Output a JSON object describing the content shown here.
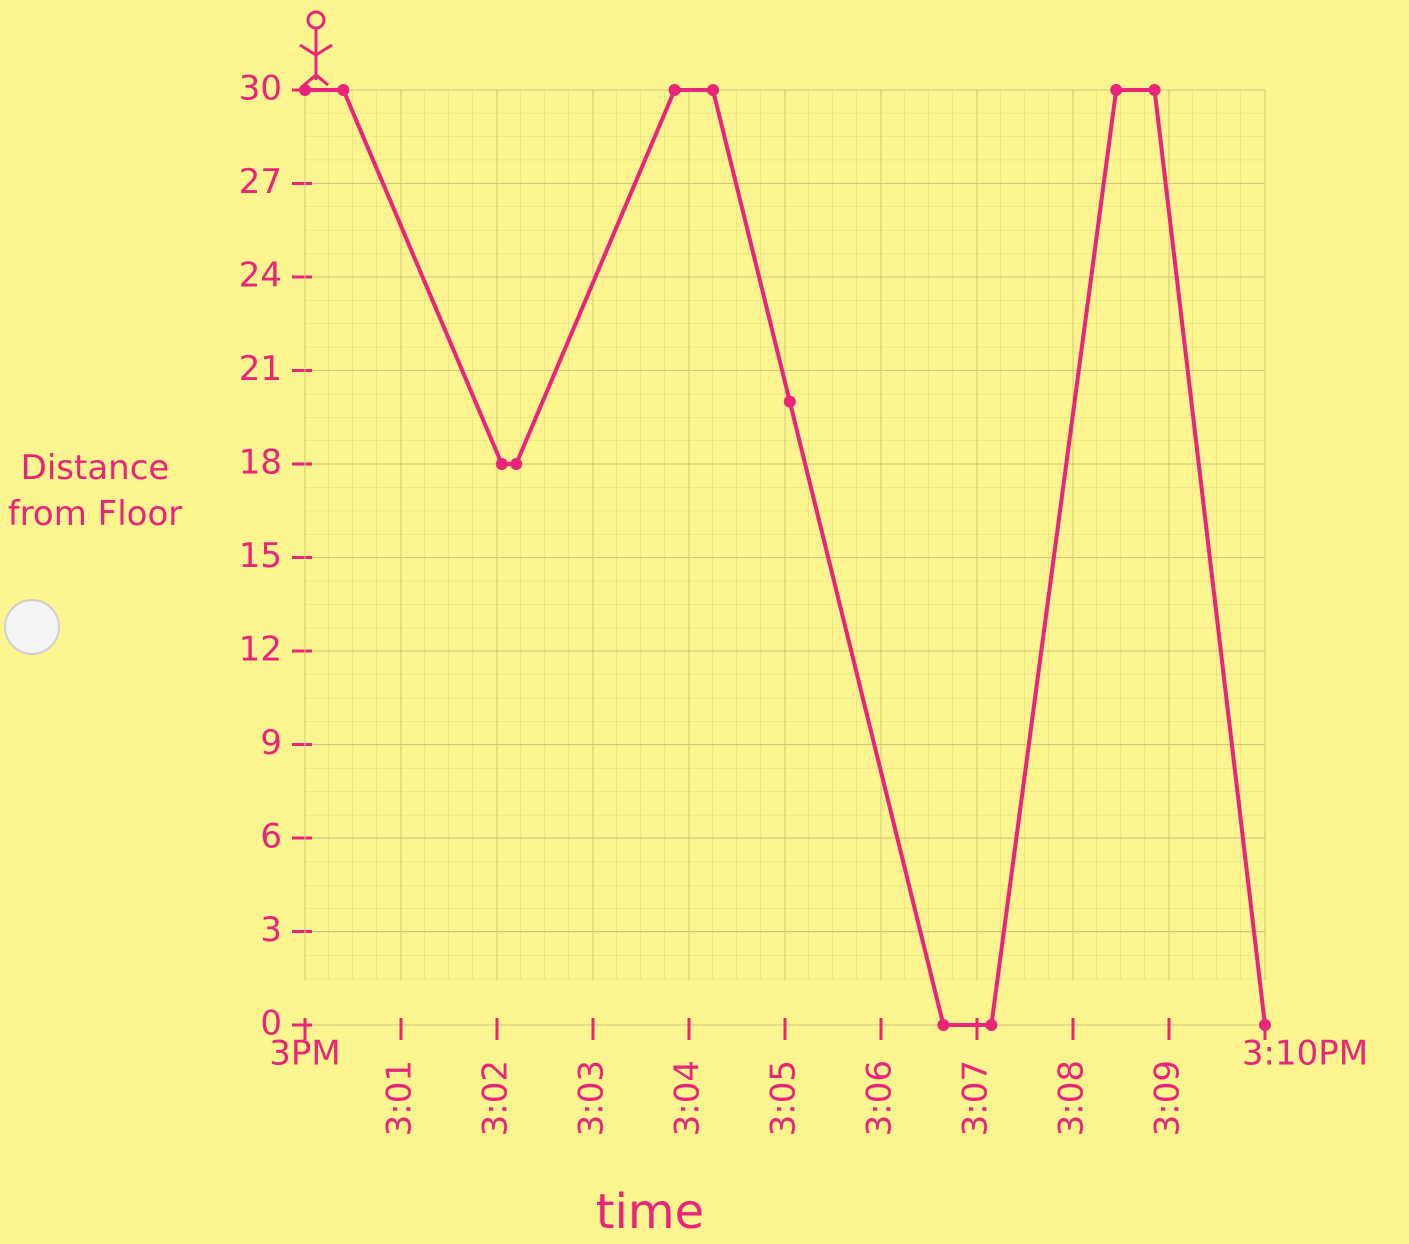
{
  "chart_data": {
    "type": "line",
    "ylabel": "Distance from Floor",
    "xlabel": "time",
    "xlim": [
      0,
      10
    ],
    "ylim": [
      0,
      30
    ],
    "xticks": [
      {
        "value": 0,
        "label": "3PM"
      },
      {
        "value": 1,
        "label": "3:01"
      },
      {
        "value": 2,
        "label": "3:02"
      },
      {
        "value": 3,
        "label": "3:03"
      },
      {
        "value": 4,
        "label": "3:04"
      },
      {
        "value": 5,
        "label": "3:05"
      },
      {
        "value": 6,
        "label": "3:06"
      },
      {
        "value": 7,
        "label": "3:07"
      },
      {
        "value": 8,
        "label": "3:08"
      },
      {
        "value": 9,
        "label": "3:09"
      },
      {
        "value": 10,
        "label": "3:10PM"
      }
    ],
    "yticks": [
      0,
      3,
      6,
      9,
      12,
      15,
      18,
      21,
      24,
      27,
      30
    ],
    "grid": true,
    "series": [
      {
        "color": "#e8257a",
        "x": [
          0,
          0.4,
          2.05,
          2.2,
          3.85,
          4.25,
          5.05,
          6.65,
          7.15,
          8.45,
          8.85,
          10
        ],
        "values": [
          30,
          30,
          18,
          18,
          30,
          30,
          20,
          0,
          0,
          30,
          30,
          0
        ]
      }
    ]
  }
}
